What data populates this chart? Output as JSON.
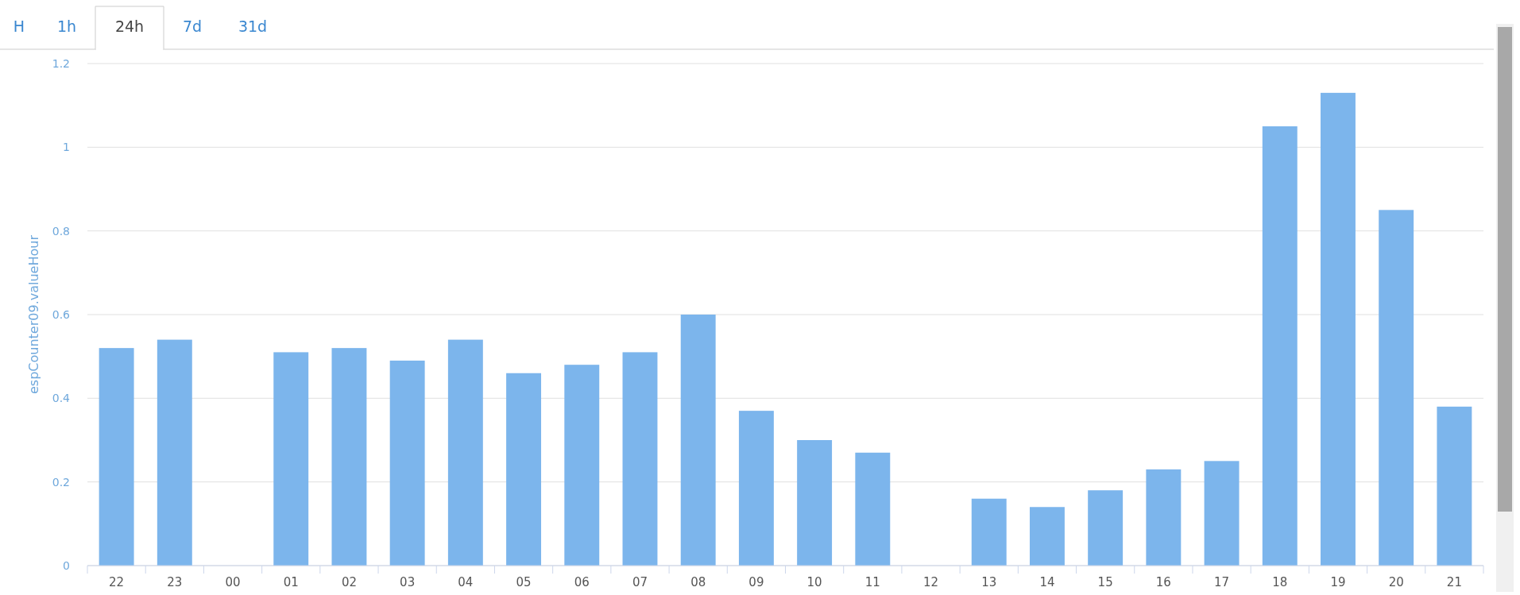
{
  "chart_data": {
    "type": "bar",
    "ylabel": "espCounter09.valueHour",
    "annotations": [
      "H",
      "1h",
      "24h",
      "7d",
      "31d"
    ],
    "categories": [
      "22",
      "23",
      "00",
      "01",
      "02",
      "03",
      "04",
      "05",
      "06",
      "07",
      "08",
      "09",
      "10",
      "11",
      "12",
      "13",
      "14",
      "15",
      "16",
      "17",
      "18",
      "19",
      "20",
      "21"
    ],
    "values": [
      0.52,
      0.54,
      0,
      0.51,
      0.52,
      0.49,
      0.54,
      0.46,
      0.48,
      0.51,
      0.6,
      0.37,
      0.3,
      0.27,
      0,
      0.16,
      0.14,
      0.18,
      0.23,
      0.25,
      1.05,
      1.13,
      0.85,
      0.38
    ],
    "color": "#7cb5ec",
    "ylim": [
      0,
      1.2
    ],
    "yticks": [
      0,
      0.2,
      0.4,
      0.6,
      0.8,
      1,
      1.2
    ],
    "grid": "y"
  }
}
